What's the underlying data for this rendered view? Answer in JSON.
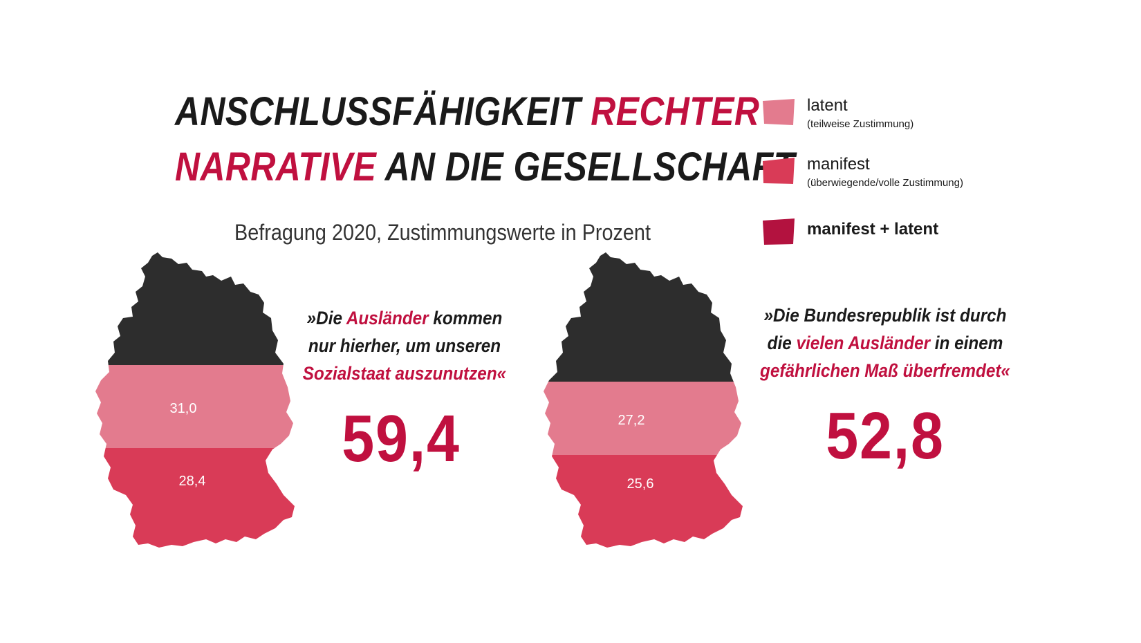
{
  "title": {
    "line1_dark": "ANSCHLUSSFÄHIGKEIT",
    "line1_accent": "RECHTER",
    "line2_accent": "NARRATIVE",
    "line2_dark": "AN DIE GESELLSCHAFT"
  },
  "subtitle": "Befragung 2020, Zustimmungswerte in Prozent",
  "legend": [
    {
      "label": "latent",
      "note": "(teilweise Zustimmung)",
      "color": "#e37b8e"
    },
    {
      "label": "manifest",
      "note": "(überwiegende/volle Zustimmung)",
      "color": "#d93b57"
    },
    {
      "label": "manifest + latent",
      "note": "",
      "color": "#b3123f"
    }
  ],
  "colors": {
    "dark": "#2d2d2d",
    "latent": "#e37b8e",
    "manifest": "#d93b57",
    "accent": "#c0103f"
  },
  "panels": [
    {
      "quote": {
        "line1_pre": "»Die ",
        "line1_accent": "Ausländer",
        "line1_post": " kommen",
        "line2": "nur hierher, um unseren",
        "line3_accent": "Sozialstaat auszunutzen«"
      },
      "total": "59,4",
      "latent_label": "31,0",
      "manifest_label": "28,4"
    },
    {
      "quote": {
        "line1": "»Die Bundesrepublik ist durch",
        "line2_pre": "die ",
        "line2_accent": "vielen Ausländer",
        "line2_post": " in einem",
        "line3_accent": "gefährlichen Maß überfremdet«"
      },
      "total": "52,8",
      "latent_label": "27,2",
      "manifest_label": "25,6"
    }
  ],
  "chart_data": [
    {
      "type": "bar",
      "title": "»Die Ausländer kommen nur hierher, um unseren Sozialstaat auszunutzen«",
      "categories": [
        "latent",
        "manifest"
      ],
      "values": [
        31.0,
        28.4
      ],
      "total": 59.4,
      "unit": "Prozent"
    },
    {
      "type": "bar",
      "title": "»Die Bundesrepublik ist durch die vielen Ausländer in einem gefährlichen Maß überfremdet«",
      "categories": [
        "latent",
        "manifest"
      ],
      "values": [
        27.2,
        25.6
      ],
      "total": 52.8,
      "unit": "Prozent"
    }
  ]
}
